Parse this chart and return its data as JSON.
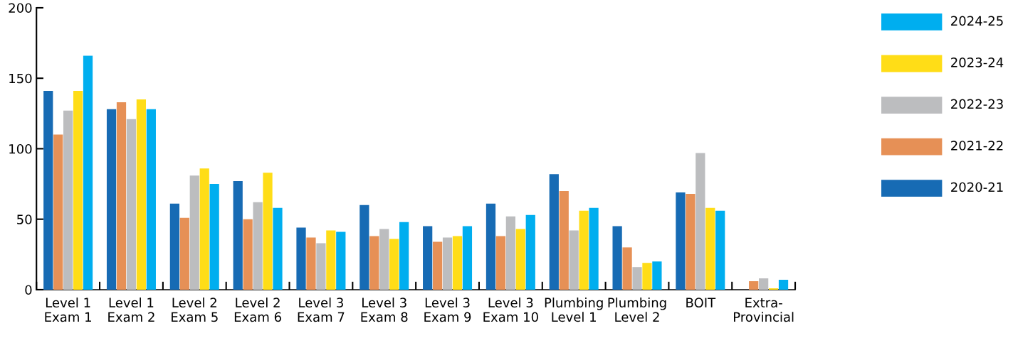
{
  "chart_data": {
    "type": "bar",
    "categories": [
      "Level 1\nExam 1",
      "Level 1\nExam 2",
      "Level 2\nExam 5",
      "Level 2\nExam 6",
      "Level 3\nExam 7",
      "Level 3\nExam 8",
      "Level 3\nExam 9",
      "Level 3\nExam 10",
      "Plumbing\nLevel 1",
      "Plumbing\nLevel 2",
      "BOIT",
      "Extra-\nProvincial"
    ],
    "series": [
      {
        "name": "2020-21",
        "color": "#176bb4",
        "values": [
          141,
          128,
          61,
          77,
          44,
          60,
          45,
          61,
          82,
          45,
          69,
          0
        ]
      },
      {
        "name": "2021-22",
        "color": "#e69056",
        "values": [
          110,
          133,
          51,
          50,
          37,
          38,
          34,
          38,
          70,
          30,
          68,
          6
        ]
      },
      {
        "name": "2022-23",
        "color": "#bcbdbf",
        "values": [
          127,
          121,
          81,
          62,
          33,
          43,
          37,
          52,
          42,
          16,
          97,
          8
        ]
      },
      {
        "name": "2023-24",
        "color": "#ffdd17",
        "values": [
          141,
          135,
          86,
          83,
          42,
          36,
          38,
          43,
          56,
          19,
          58,
          1
        ]
      },
      {
        "name": "2024-25",
        "color": "#00aeef",
        "values": [
          166,
          128,
          75,
          58,
          41,
          48,
          45,
          53,
          58,
          20,
          56,
          7
        ]
      }
    ],
    "ylim": [
      0,
      200
    ],
    "yticks": [
      0,
      50,
      100,
      150,
      200
    ],
    "grid": false,
    "legend": "top right"
  }
}
